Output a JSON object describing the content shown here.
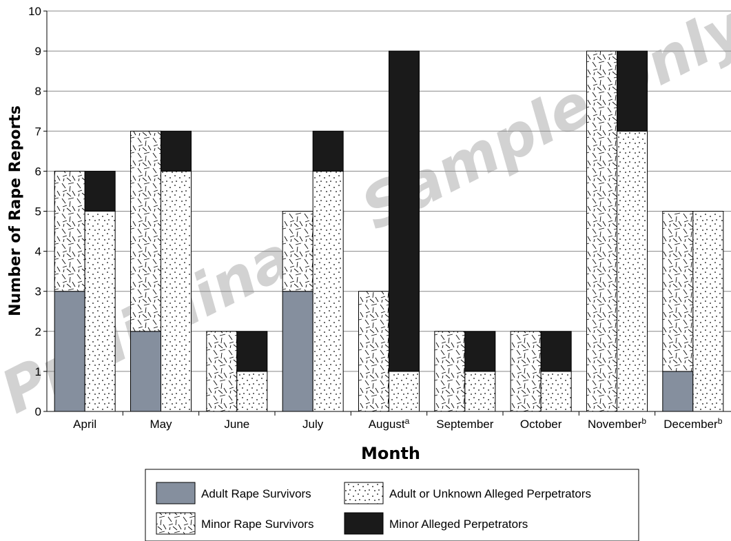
{
  "watermark": "Preliminary Sample Only",
  "chart_data": {
    "type": "bar",
    "stacked": true,
    "grouped_pairs": true,
    "xlabel": "Month",
    "ylabel": "Number of Rape Reports",
    "ylim": [
      0,
      10
    ],
    "yticks": [
      "0",
      "1",
      "2",
      "3",
      "4",
      "5",
      "6",
      "7",
      "8",
      "9",
      "10"
    ],
    "grid": true,
    "legend_position": "bottom",
    "categories": [
      "April",
      "May",
      "June",
      "July",
      "August",
      "September",
      "October",
      "November",
      "December"
    ],
    "category_superscripts": [
      "",
      "",
      "",
      "",
      "a",
      "",
      "",
      "b",
      "b"
    ],
    "survivor_bars": {
      "series": [
        {
          "name": "Adult Rape Survivors",
          "values": [
            3,
            2,
            0,
            3,
            0,
            0,
            0,
            0,
            1
          ]
        },
        {
          "name": "Minor Rape Survivors",
          "values": [
            3,
            5,
            2,
            2,
            3,
            2,
            2,
            9,
            4
          ]
        }
      ]
    },
    "perpetrator_bars": {
      "series": [
        {
          "name": "Adult or Unknown Alleged Perpetrators",
          "values": [
            5,
            6,
            1,
            6,
            1,
            1,
            1,
            7,
            5
          ]
        },
        {
          "name": "Minor Alleged Perpetrators",
          "values": [
            1,
            1,
            1,
            1,
            8,
            1,
            1,
            2,
            0
          ]
        }
      ]
    },
    "legend": [
      {
        "name": "Adult Rape Survivors",
        "pattern": "solid-gray"
      },
      {
        "name": "Adult or Unknown Alleged Perpetrators",
        "pattern": "dots"
      },
      {
        "name": "Minor Rape Survivors",
        "pattern": "dashes"
      },
      {
        "name": "Minor Alleged Perpetrators",
        "pattern": "solid-black"
      }
    ],
    "colors": {
      "adult_survivor": "#858f9e",
      "minor_perp": "#1a1a1a",
      "grid": "#888888"
    }
  }
}
